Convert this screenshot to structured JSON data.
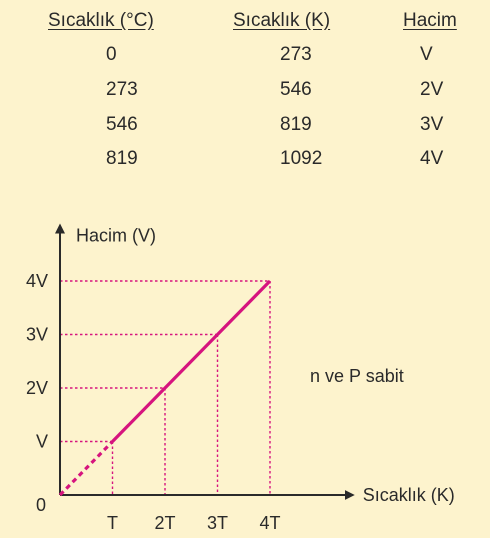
{
  "table": {
    "headers": [
      "Sıcaklık (°C)",
      "Sıcaklık (K)",
      "Hacim"
    ],
    "rows": [
      [
        "0",
        "273",
        "V"
      ],
      [
        "273",
        "546",
        "2V"
      ],
      [
        "546",
        "819",
        "3V"
      ],
      [
        "819",
        "1092",
        "4V"
      ]
    ]
  },
  "chart_data": {
    "type": "line",
    "ylabel": "Hacim (V)",
    "xlabel": "Sıcaklık (K)",
    "origin_label": "0",
    "x_tick_labels": [
      "T",
      "2T",
      "3T",
      "4T"
    ],
    "y_tick_labels": [
      "V",
      "2V",
      "3V",
      "4V"
    ],
    "annotation": "n ve P sabit",
    "series": [
      {
        "x": [
          0,
          1,
          2,
          3,
          4
        ],
        "y": [
          0,
          1,
          2,
          3,
          4
        ]
      }
    ],
    "xlim": [
      0,
      5.5
    ],
    "ylim": [
      0,
      5
    ],
    "line_color": "#d6147e",
    "guide_color": "#d6147e"
  }
}
